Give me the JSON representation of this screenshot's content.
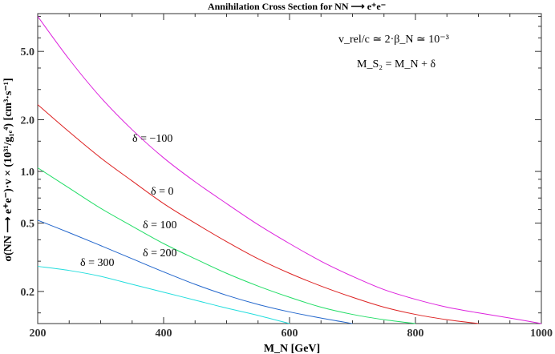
{
  "chart_data": {
    "type": "line",
    "title": "Annihilation Cross Section for NN ⟶ e⁺e⁻",
    "xlabel": "M_N [GeV]",
    "ylabel": "σ(NN ⟶ e⁺e⁻)·v × (10³¹/g₁ₑ⁴) [cm³·s⁻¹]",
    "xlim": [
      200,
      1000
    ],
    "ylim": [
      0.13,
      8.3
    ],
    "yscale": "log",
    "x_ticks": [
      "200",
      "400",
      "600",
      "800",
      "1000"
    ],
    "y_ticks": [
      "0.2",
      "0.5",
      "1.0",
      "2.0",
      "5.0"
    ],
    "grid": false,
    "annotations": [
      "v_rel/c ≃ 2·β_N ≃ 10⁻³",
      "M_S₂ = M_N + δ"
    ],
    "series": [
      {
        "name": "δ = −100",
        "color": "#dd22dd",
        "x": [
          200,
          250,
          300,
          350,
          400,
          450,
          500,
          550,
          600,
          650,
          700,
          750,
          800,
          850,
          900,
          950,
          1000
        ],
        "y": [
          8.0,
          4.5,
          2.7,
          1.75,
          1.2,
          0.87,
          0.65,
          0.49,
          0.38,
          0.3,
          0.245,
          0.205,
          0.18,
          0.162,
          0.15,
          0.14,
          0.13
        ]
      },
      {
        "name": "δ = 0",
        "color": "#dd2222",
        "x": [
          200,
          250,
          300,
          350,
          400,
          450,
          500,
          550,
          600,
          650,
          700,
          750,
          800,
          850,
          900
        ],
        "y": [
          2.45,
          1.7,
          1.2,
          0.88,
          0.65,
          0.5,
          0.39,
          0.31,
          0.255,
          0.215,
          0.185,
          0.162,
          0.147,
          0.137,
          0.13
        ]
      },
      {
        "name": "δ = 100",
        "color": "#22dd66",
        "x": [
          200,
          250,
          300,
          350,
          400,
          450,
          500,
          550,
          600,
          650,
          700,
          750,
          800
        ],
        "y": [
          1.05,
          0.8,
          0.61,
          0.48,
          0.38,
          0.31,
          0.255,
          0.215,
          0.185,
          0.162,
          0.147,
          0.137,
          0.13
        ]
      },
      {
        "name": "δ = 200",
        "color": "#2266cc",
        "x": [
          200,
          250,
          300,
          350,
          400,
          450,
          500,
          550,
          600,
          650,
          700
        ],
        "y": [
          0.52,
          0.44,
          0.37,
          0.31,
          0.26,
          0.22,
          0.19,
          0.168,
          0.152,
          0.14,
          0.13
        ]
      },
      {
        "name": "δ = 300",
        "color": "#22dddd",
        "x": [
          200,
          250,
          300,
          350,
          400,
          450,
          500,
          550,
          600
        ],
        "y": [
          0.28,
          0.265,
          0.245,
          0.22,
          0.198,
          0.178,
          0.16,
          0.145,
          0.13
        ]
      }
    ]
  }
}
